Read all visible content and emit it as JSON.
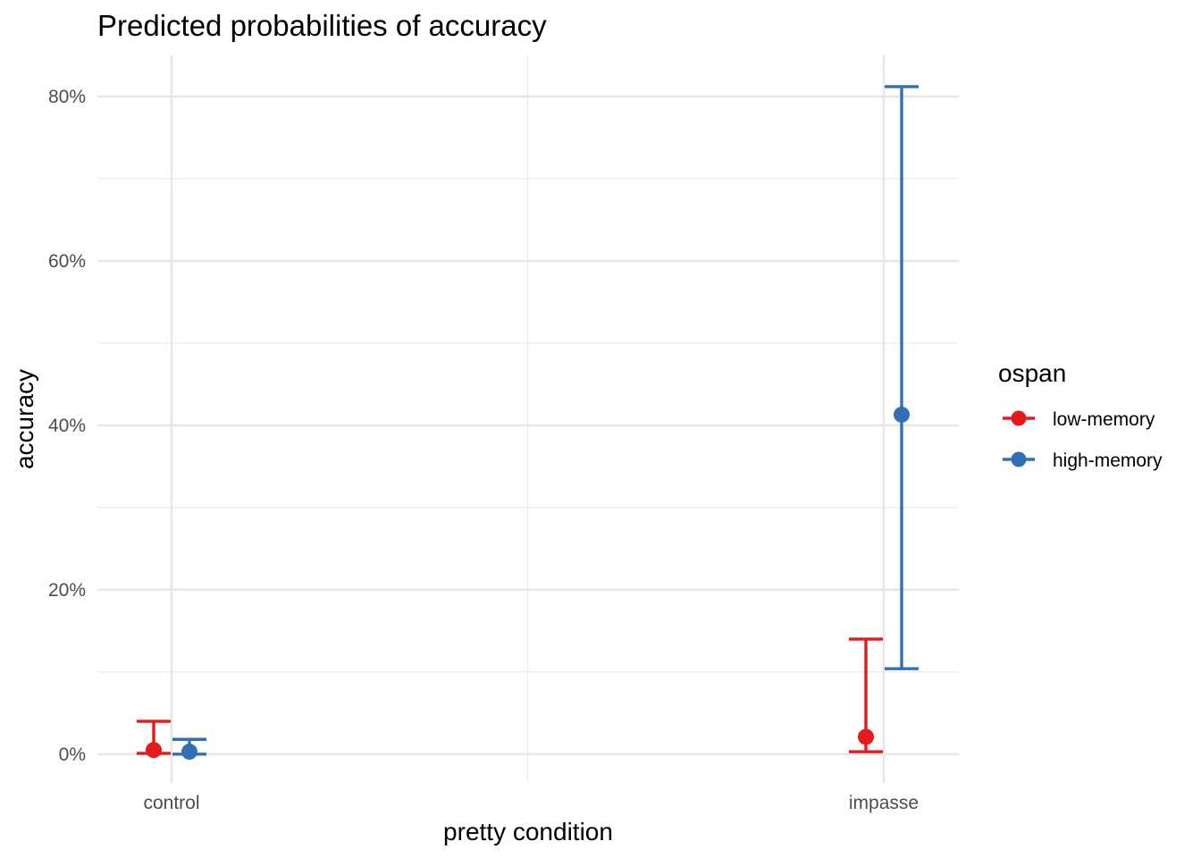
{
  "chart_data": {
    "type": "scatter",
    "title": "Predicted probabilities of accuracy",
    "xlabel": "pretty condition",
    "ylabel": "accuracy",
    "categories": [
      "control",
      "impasse"
    ],
    "ylim": [
      -0.035,
      0.85
    ],
    "y_ticks": [
      0,
      0.2,
      0.4,
      0.6,
      0.8
    ],
    "y_tick_labels": [
      "0%",
      "20%",
      "40%",
      "60%",
      "80%"
    ],
    "grid": true,
    "legend": {
      "title": "ospan",
      "position": "right"
    },
    "series": [
      {
        "name": "low-memory",
        "color": "#e41a1c",
        "values": [
          0.005,
          0.021
        ],
        "lower": [
          0.001,
          0.003
        ],
        "upper": [
          0.04,
          0.14
        ]
      },
      {
        "name": "high-memory",
        "color": "#3270b4",
        "values": [
          0.003,
          0.413
        ],
        "lower": [
          0.0,
          0.104
        ],
        "upper": [
          0.018,
          0.812
        ]
      }
    ]
  }
}
